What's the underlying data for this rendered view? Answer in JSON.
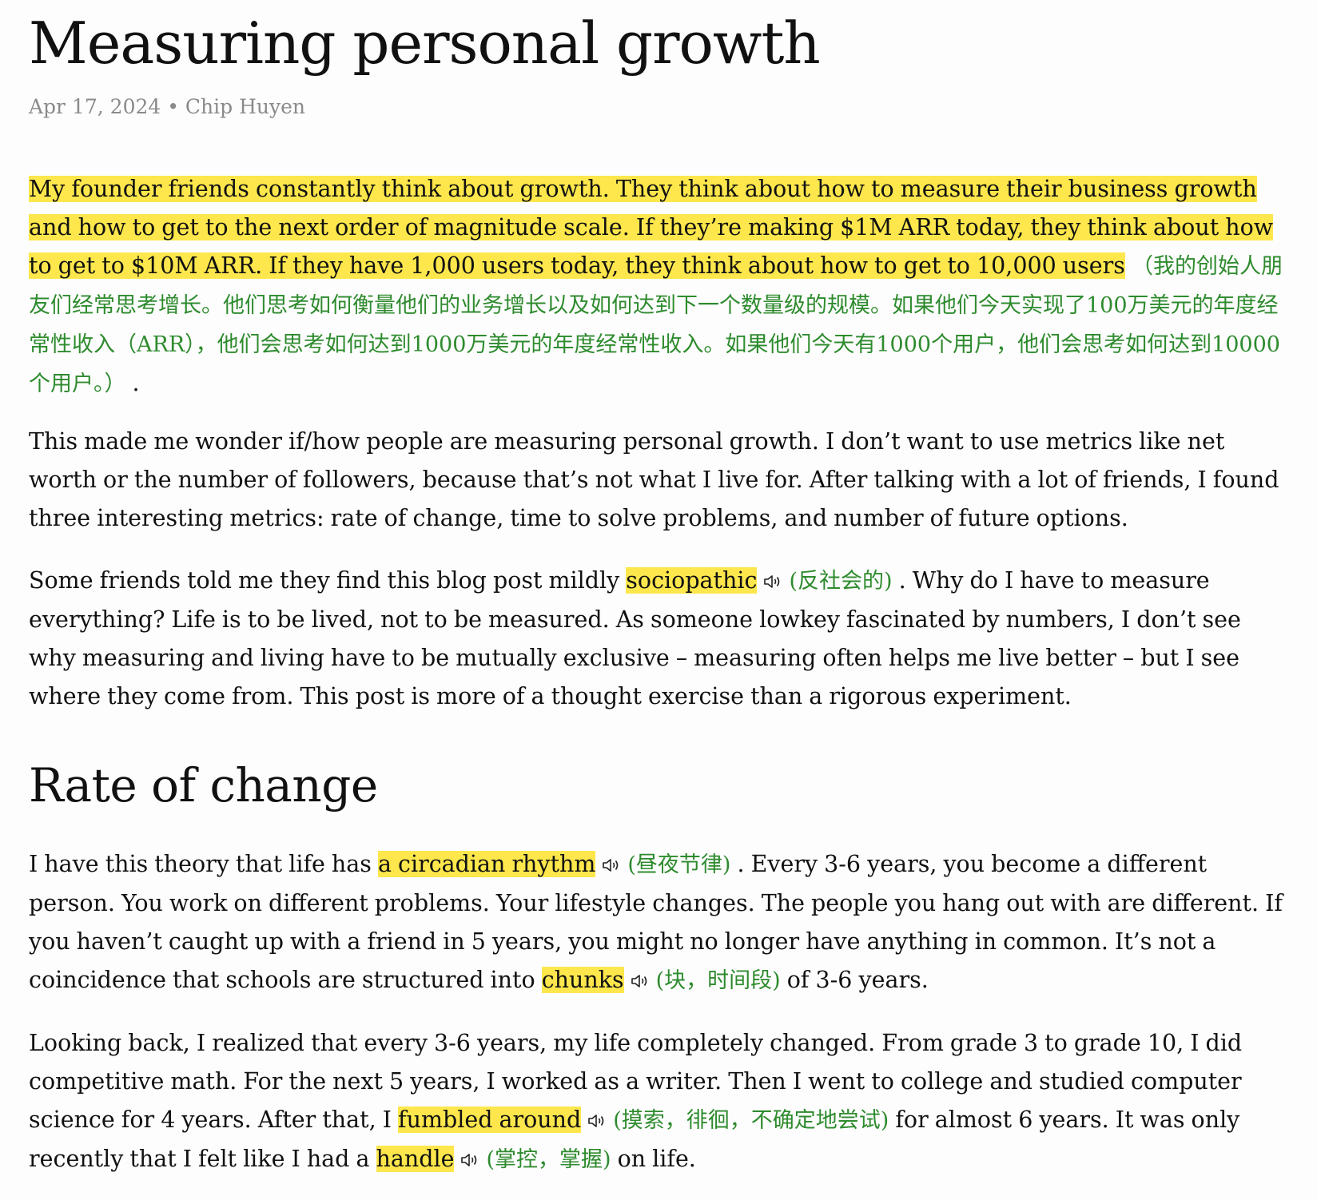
{
  "article": {
    "title": "Measuring personal growth",
    "meta": "Apr 17, 2024 • Chip Huyen"
  },
  "p1": {
    "highlight": "My founder friends constantly think about growth. They think about how to measure their business growth and how to get to the next order of magnitude scale. If they’re making $1M ARR today, they think about how to get to $10M ARR. If they have 1,000 users today, they think about how to get to 10,000 users",
    "translation": "（我的创始人朋友们经常思考增长。他们思考如何衡量他们的业务增长以及如何达到下一个数量级的规模。如果他们今天实现了100万美元的年度经常性收入（ARR），他们会思考如何达到1000万美元的年度经常性收入。如果他们今天有1000个用户，他们会思考如何达到10000个用户。）",
    "after": " ."
  },
  "p2": {
    "text": "This made me wonder if/how people are measuring personal growth. I don’t want to use metrics like net worth or the number of followers, because that’s not what I live for. After talking with a lot of friends, I found three interesting metrics: rate of change, time to solve problems, and number of future options."
  },
  "p3": {
    "before": "Some friends told me they find this blog post mildly ",
    "word": "sociopathic",
    "translation": "(反社会的)",
    "after": " . Why do I have to measure everything? Life is to be lived, not to be measured. As someone lowkey fascinated by numbers, I don’t see why measuring and living have to be mutually exclusive – measuring often helps me live better – but I see where they come from. This post is more of a thought exercise than a rigorous experiment."
  },
  "section1": {
    "heading": "Rate of change"
  },
  "p4": {
    "before": "I have this theory that life has ",
    "word1": "a circadian rhythm",
    "translation1": "(昼夜节律)",
    "mid": " . Every 3-6 years, you become a different person. You work on different problems. Your lifestyle changes. The people you hang out with are different. If you haven’t caught up with a friend in 5 years, you might no longer have anything in common. It’s not a coincidence that schools are structured into ",
    "word2": "chunks",
    "translation2": "(块，时间段)",
    "after": " of 3-6 years."
  },
  "p5": {
    "before": "Looking back, I realized that every 3-6 years, my life completely changed. From grade 3 to grade 10, I did competitive math. For the next 5 years, I worked as a writer. Then I went to college and studied computer science for 4 years. After that, I ",
    "word1": "fumbled around",
    "translation1": "(摸索，徘徊，不确定地尝试)",
    "mid": " for almost 6 years. It was only recently that I felt like I had a ",
    "word2": "handle",
    "translation2": "(掌控，掌握)",
    "after": " on life."
  },
  "colors": {
    "highlight": "#fde74c",
    "translation": "#2e8b2e",
    "meta": "#8a8a8a",
    "text": "#111111"
  },
  "icons": {
    "pronounce": "speaker-icon"
  }
}
